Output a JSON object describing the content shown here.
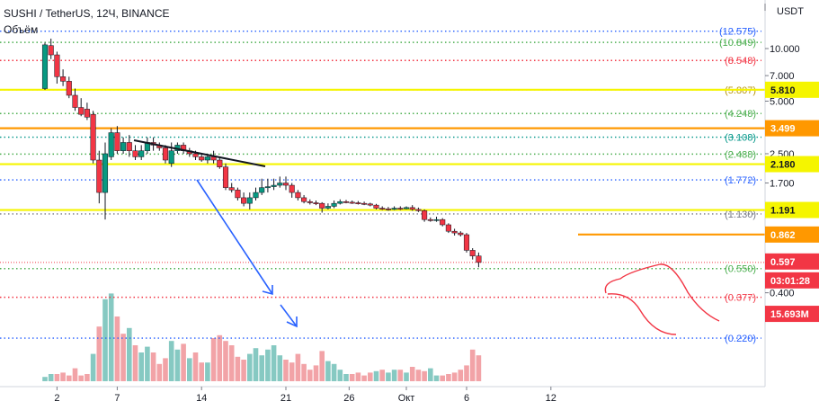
{
  "header": {
    "symbol": "SUSHI / TetherUS, 12Ч, BINANCE",
    "volume_label": "Объём"
  },
  "chart_data": {
    "type": "candlestick",
    "price_axis": {
      "unit": "USDT",
      "scale": "log",
      "ticks": [
        "10.000",
        "7.000",
        "5.000",
        "2.500",
        "1.700",
        "0.400"
      ],
      "tick_values": [
        10,
        7,
        5,
        2.5,
        1.7,
        0.4
      ]
    },
    "time_axis": {
      "ticks": [
        "2",
        "7",
        "14",
        "21",
        "26",
        "Окт",
        "6",
        "12"
      ],
      "tick_bars": [
        2,
        12,
        26,
        40,
        50.5,
        60,
        70,
        84
      ]
    },
    "fib_levels": [
      {
        "label": "(12.575)",
        "value": 12.575,
        "color": "#2962ff"
      },
      {
        "label": "(10.849)",
        "value": 10.849,
        "color": "#4caf50"
      },
      {
        "label": "(8.548)",
        "value": 8.548,
        "color": "#f23645"
      },
      {
        "label": "(5.807)",
        "value": 5.807,
        "color": "#b7950b"
      },
      {
        "label": "(4.248)",
        "value": 4.248,
        "color": "#4caf50"
      },
      {
        "label": "(3.108)",
        "value": 3.108,
        "color": "#009688"
      },
      {
        "label": "(2.488)",
        "value": 2.488,
        "color": "#4caf50"
      },
      {
        "label": "(1.772)",
        "value": 1.772,
        "color": "#2962ff"
      },
      {
        "label": "(1.130)",
        "value": 1.13,
        "color": "#787b86"
      },
      {
        "label": "(0.550)",
        "value": 0.55,
        "color": "#4caf50"
      },
      {
        "label": "(0.377)",
        "value": 0.377,
        "color": "#f23645"
      },
      {
        "label": "(0.220)",
        "value": 0.22,
        "color": "#2962ff"
      }
    ],
    "horizontal_lines": [
      {
        "label": "5.810",
        "value": 5.81,
        "color": "#f5f500"
      },
      {
        "label": "3.499",
        "value": 3.499,
        "color": "#ff9800"
      },
      {
        "label": "2.180",
        "value": 2.18,
        "color": "#f5f500"
      },
      {
        "label": "1.191",
        "value": 1.191,
        "color": "#f5f500"
      },
      {
        "label": "0.862",
        "value": 0.862,
        "color": "#ff9800"
      }
    ],
    "current_price": {
      "label": "0.597",
      "value": 0.597,
      "countdown": "03:01:28",
      "color": "#f23645"
    },
    "volume_label": "15.693M",
    "candles": [
      [
        0,
        5.9,
        10.5,
        10.8,
        5.8
      ],
      [
        1,
        10.4,
        9.2,
        11.4,
        8.7
      ],
      [
        2,
        9.2,
        6.9,
        9.6,
        6.3
      ],
      [
        3,
        6.9,
        6.5,
        7.6,
        6.1
      ],
      [
        4,
        6.5,
        5.4,
        6.9,
        5.2
      ],
      [
        5,
        5.4,
        4.6,
        5.9,
        4.4
      ],
      [
        6,
        4.6,
        4.2,
        5.2,
        4.1
      ],
      [
        7,
        4.5,
        4.05,
        4.9,
        3.9
      ],
      [
        8,
        4.2,
        2.3,
        4.4,
        2.2
      ],
      [
        9,
        2.3,
        1.5,
        2.6,
        1.3
      ],
      [
        10,
        1.5,
        2.5,
        2.9,
        1.05
      ],
      [
        11,
        2.4,
        3.3,
        3.5,
        2.3
      ],
      [
        12,
        3.3,
        2.6,
        3.6,
        2.5
      ],
      [
        13,
        2.6,
        2.9,
        3.1,
        2.5
      ],
      [
        14,
        2.9,
        2.6,
        3.2,
        2.4
      ],
      [
        15,
        2.6,
        2.4,
        2.8,
        2.3
      ],
      [
        16,
        2.4,
        2.6,
        2.8,
        2.3
      ],
      [
        17,
        2.6,
        2.9,
        3.1,
        2.5
      ],
      [
        18,
        2.9,
        2.8,
        3.1,
        2.6
      ],
      [
        19,
        2.8,
        2.7,
        2.9,
        2.6
      ],
      [
        20,
        2.7,
        2.3,
        2.8,
        2.2
      ],
      [
        21,
        2.2,
        2.6,
        2.9,
        2.1
      ],
      [
        22,
        2.6,
        2.8,
        2.9,
        2.5
      ],
      [
        23,
        2.8,
        2.6,
        2.9,
        2.5
      ],
      [
        24,
        2.6,
        2.5,
        2.7,
        2.4
      ],
      [
        25,
        2.5,
        2.4,
        2.6,
        2.3
      ],
      [
        26,
        2.4,
        2.3,
        2.5,
        2.25
      ],
      [
        27,
        2.3,
        2.4,
        2.5,
        2.2
      ],
      [
        28,
        2.4,
        2.3,
        2.6,
        2.2
      ],
      [
        29,
        2.3,
        2.1,
        2.4,
        2.05
      ],
      [
        30,
        2.1,
        1.6,
        2.2,
        1.55
      ],
      [
        31,
        1.6,
        1.55,
        1.7,
        1.5
      ],
      [
        32,
        1.55,
        1.4,
        1.6,
        1.35
      ],
      [
        33,
        1.4,
        1.3,
        1.5,
        1.25
      ],
      [
        34,
        1.3,
        1.4,
        1.5,
        1.2
      ],
      [
        35,
        1.4,
        1.5,
        1.6,
        1.35
      ],
      [
        36,
        1.5,
        1.6,
        1.8,
        1.45
      ],
      [
        37,
        1.6,
        1.62,
        1.8,
        1.5
      ],
      [
        38,
        1.62,
        1.65,
        1.8,
        1.55
      ],
      [
        39,
        1.65,
        1.7,
        1.85,
        1.6
      ],
      [
        40,
        1.7,
        1.65,
        1.85,
        1.55
      ],
      [
        41,
        1.65,
        1.5,
        1.7,
        1.4
      ],
      [
        42,
        1.5,
        1.4,
        1.55,
        1.35
      ],
      [
        43,
        1.4,
        1.33,
        1.45,
        1.3
      ],
      [
        44,
        1.33,
        1.31,
        1.37,
        1.28
      ],
      [
        45,
        1.31,
        1.3,
        1.35,
        1.27
      ],
      [
        46,
        1.3,
        1.22,
        1.32,
        1.15
      ],
      [
        47,
        1.22,
        1.25,
        1.3,
        1.2
      ],
      [
        48,
        1.25,
        1.3,
        1.35,
        1.22
      ],
      [
        49,
        1.3,
        1.33,
        1.37,
        1.28
      ],
      [
        50,
        1.33,
        1.32,
        1.36,
        1.3
      ],
      [
        51,
        1.32,
        1.31,
        1.35,
        1.29
      ],
      [
        52,
        1.31,
        1.3,
        1.34,
        1.28
      ],
      [
        53,
        1.3,
        1.29,
        1.33,
        1.27
      ],
      [
        54,
        1.29,
        1.27,
        1.31,
        1.25
      ],
      [
        55,
        1.27,
        1.22,
        1.29,
        1.2
      ],
      [
        56,
        1.22,
        1.21,
        1.25,
        1.19
      ],
      [
        57,
        1.21,
        1.2,
        1.24,
        1.18
      ],
      [
        58,
        1.2,
        1.22,
        1.25,
        1.19
      ],
      [
        59,
        1.22,
        1.21,
        1.25,
        1.19
      ],
      [
        60,
        1.21,
        1.23,
        1.25,
        1.2
      ],
      [
        61,
        1.23,
        1.2,
        1.27,
        1.18
      ],
      [
        62,
        1.2,
        1.18,
        1.23,
        1.16
      ],
      [
        63,
        1.18,
        1.05,
        1.2,
        1.02
      ],
      [
        64,
        1.05,
        1.04,
        1.08,
        1.02
      ],
      [
        65,
        1.04,
        1.05,
        1.09,
        1.02
      ],
      [
        66,
        1.05,
        0.98,
        1.07,
        0.96
      ],
      [
        67,
        0.98,
        0.9,
        1.0,
        0.88
      ],
      [
        68,
        0.9,
        0.88,
        0.93,
        0.85
      ],
      [
        69,
        0.88,
        0.86,
        0.9,
        0.84
      ],
      [
        70,
        0.86,
        0.7,
        0.88,
        0.68
      ],
      [
        71,
        0.7,
        0.65,
        0.72,
        0.62
      ],
      [
        72,
        0.65,
        0.597,
        0.68,
        0.56
      ]
    ],
    "volumes": [
      [
        0,
        3,
        1
      ],
      [
        1,
        5,
        1
      ],
      [
        2,
        5,
        0
      ],
      [
        3,
        6,
        0
      ],
      [
        4,
        4,
        0
      ],
      [
        5,
        9,
        0
      ],
      [
        6,
        4,
        0
      ],
      [
        7,
        5,
        0
      ],
      [
        8,
        19,
        1
      ],
      [
        9,
        38,
        0
      ],
      [
        10,
        57,
        1
      ],
      [
        11,
        61,
        1
      ],
      [
        12,
        45,
        0
      ],
      [
        13,
        33,
        0
      ],
      [
        14,
        37,
        1
      ],
      [
        15,
        25,
        0
      ],
      [
        16,
        20,
        1
      ],
      [
        17,
        24,
        1
      ],
      [
        18,
        20,
        0
      ],
      [
        19,
        12,
        0
      ],
      [
        20,
        16,
        0
      ],
      [
        21,
        28,
        1
      ],
      [
        22,
        22,
        1
      ],
      [
        23,
        26,
        0
      ],
      [
        24,
        16,
        1
      ],
      [
        25,
        20,
        0
      ],
      [
        26,
        13,
        0
      ],
      [
        27,
        13,
        1
      ],
      [
        28,
        30,
        0
      ],
      [
        29,
        32,
        0
      ],
      [
        30,
        28,
        0
      ],
      [
        31,
        25,
        0
      ],
      [
        32,
        17,
        0
      ],
      [
        33,
        15,
        0
      ],
      [
        34,
        19,
        1
      ],
      [
        35,
        23,
        1
      ],
      [
        36,
        18,
        1
      ],
      [
        37,
        22,
        1
      ],
      [
        38,
        25,
        1
      ],
      [
        39,
        18,
        1
      ],
      [
        40,
        15,
        0
      ],
      [
        41,
        13,
        0
      ],
      [
        42,
        19,
        0
      ],
      [
        43,
        12,
        0
      ],
      [
        44,
        8,
        0
      ],
      [
        45,
        11,
        0
      ],
      [
        46,
        21,
        0
      ],
      [
        47,
        14,
        1
      ],
      [
        48,
        12,
        1
      ],
      [
        49,
        8,
        1
      ],
      [
        50,
        5,
        1
      ],
      [
        51,
        5,
        0
      ],
      [
        52,
        6,
        0
      ],
      [
        53,
        4,
        0
      ],
      [
        54,
        6,
        0
      ],
      [
        55,
        7,
        1
      ],
      [
        56,
        8,
        0
      ],
      [
        57,
        6,
        1
      ],
      [
        58,
        8,
        1
      ],
      [
        59,
        8,
        0
      ],
      [
        60,
        6,
        1
      ],
      [
        61,
        10,
        0
      ],
      [
        62,
        8,
        0
      ],
      [
        63,
        7,
        0
      ],
      [
        64,
        9,
        1
      ],
      [
        65,
        4,
        1
      ],
      [
        66,
        4,
        0
      ],
      [
        67,
        5,
        0
      ],
      [
        68,
        6,
        0
      ],
      [
        69,
        8,
        0
      ],
      [
        70,
        11,
        0
      ],
      [
        71,
        22,
        0
      ],
      [
        72,
        18,
        0
      ]
    ]
  }
}
